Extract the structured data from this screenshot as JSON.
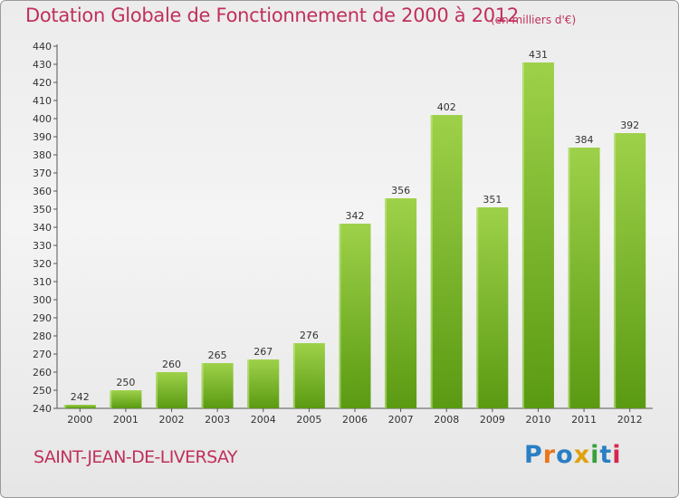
{
  "header": {
    "title": "Dotation Globale de Fonctionnement de 2000 à 2012",
    "subtitle": "(en milliers d'€)"
  },
  "footer": {
    "commune": "SAINT-JEAN-DE-LIVERSAY",
    "logo_text": "Proxiti",
    "logo_colors": [
      "#2a7fc4",
      "#e8771c",
      "#2a7fc4",
      "#e0a00f",
      "#3aa03a",
      "#2a7fc4",
      "#d6264f"
    ]
  },
  "colors": {
    "bar_top": "#9ed14a",
    "bar_bottom": "#5a9a12",
    "accent": "#c0305c"
  },
  "chart_data": {
    "type": "bar",
    "title": "Dotation Globale de Fonctionnement de 2000 à 2012",
    "subtitle": "(en milliers d'€)",
    "xlabel": "",
    "ylabel": "",
    "categories": [
      "2000",
      "2001",
      "2002",
      "2003",
      "2004",
      "2005",
      "2006",
      "2007",
      "2008",
      "2009",
      "2010",
      "2011",
      "2012"
    ],
    "values": [
      242,
      250,
      260,
      265,
      267,
      276,
      342,
      356,
      402,
      351,
      431,
      384,
      392
    ],
    "ylim": [
      240,
      440
    ],
    "ytick_step": 10,
    "grid": false,
    "legend": "none"
  }
}
